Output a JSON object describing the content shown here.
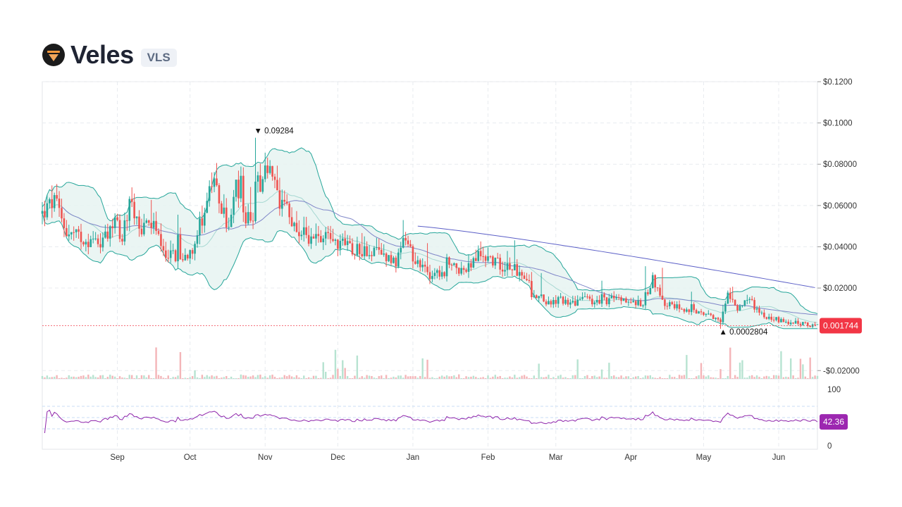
{
  "header": {
    "name": "Veles",
    "symbol": "VLS",
    "logo_icon": "veles-logo-icon"
  },
  "chart_data": [
    {
      "type": "candlestick",
      "y_ticks": [
        "$0.1200",
        "$0.1000",
        "$0.08000",
        "$0.06000",
        "$0.04000",
        "$0.02000",
        "-$0.02000"
      ],
      "y_tick_values": [
        0.12,
        0.1,
        0.08,
        0.06,
        0.04,
        0.02,
        -0.02
      ],
      "ylim": [
        -0.024,
        0.12
      ],
      "x_ticks": [
        "Sep",
        "Oct",
        "Nov",
        "Dec",
        "Jan",
        "Feb",
        "Mar",
        "Apr",
        "May",
        "Jun"
      ],
      "x_tick_days": [
        31,
        61,
        92,
        122,
        153,
        184,
        212,
        243,
        273,
        304
      ],
      "x_range_days": [
        0,
        320
      ],
      "grid": true,
      "last_price": {
        "label": "0.001744",
        "value": 0.001744,
        "color": "#f23645"
      },
      "annotations": [
        {
          "label": "0.09284",
          "marker": "▼",
          "day": 88,
          "value": 0.09284
        },
        {
          "label": "0.0002804",
          "marker": "▲",
          "day": 280,
          "value": 0.0002804
        }
      ],
      "ohlc_anchor_days": [
        0,
        5,
        10,
        20,
        27,
        30,
        33,
        36,
        40,
        45,
        50,
        55,
        58,
        62,
        66,
        70,
        73,
        77,
        80,
        84,
        87,
        88,
        90,
        92,
        95,
        98,
        100,
        103,
        107,
        112,
        117,
        122,
        127,
        133,
        138,
        142,
        146,
        150,
        155,
        160,
        165,
        170,
        175,
        180,
        184,
        188,
        193,
        198,
        202,
        206,
        210,
        214,
        220,
        224,
        228,
        233,
        238,
        243,
        248,
        252,
        256,
        262,
        268,
        274,
        277,
        280,
        283,
        287,
        291,
        295,
        299,
        304,
        310,
        315,
        320
      ],
      "close_anchor_values": [
        0.056,
        0.062,
        0.047,
        0.043,
        0.042,
        0.056,
        0.042,
        0.064,
        0.047,
        0.053,
        0.038,
        0.036,
        0.034,
        0.04,
        0.054,
        0.071,
        0.063,
        0.048,
        0.068,
        0.055,
        0.05,
        0.076,
        0.065,
        0.075,
        0.074,
        0.057,
        0.06,
        0.052,
        0.047,
        0.043,
        0.048,
        0.042,
        0.04,
        0.038,
        0.037,
        0.036,
        0.033,
        0.04,
        0.033,
        0.027,
        0.026,
        0.031,
        0.028,
        0.036,
        0.035,
        0.032,
        0.029,
        0.026,
        0.02,
        0.014,
        0.013,
        0.014,
        0.013,
        0.015,
        0.013,
        0.014,
        0.015,
        0.013,
        0.012,
        0.025,
        0.013,
        0.011,
        0.009,
        0.007,
        0.005,
        0.003,
        0.016,
        0.01,
        0.015,
        0.01,
        0.006,
        0.0045,
        0.003,
        0.0025,
        0.0017
      ],
      "sma_line": {
        "color": "#5b5fc7",
        "start_day": 155,
        "start_value": 0.05,
        "end_value": 0.02
      },
      "bollinger_bands": {
        "fill": "#e6f3f1",
        "band_line_color": "#26a69a",
        "mid_line_color": "#a7d8d2",
        "basis_line_color": "#7f86c8"
      },
      "volume": {
        "up_color": "#b7e3d1",
        "down_color": "#f4b5b8"
      },
      "candle_colors": {
        "up": "#26a69a",
        "down": "#ef5350"
      }
    },
    {
      "type": "line",
      "series": [
        {
          "name": "",
          "color": "#8e24aa"
        }
      ],
      "y_ticks": [
        "100",
        "0"
      ],
      "ylim": [
        0,
        100
      ],
      "overbought": 70,
      "oversold": 30,
      "last_value": {
        "label": "42.36",
        "value": 42.36,
        "color": "#9c27b0"
      }
    }
  ]
}
